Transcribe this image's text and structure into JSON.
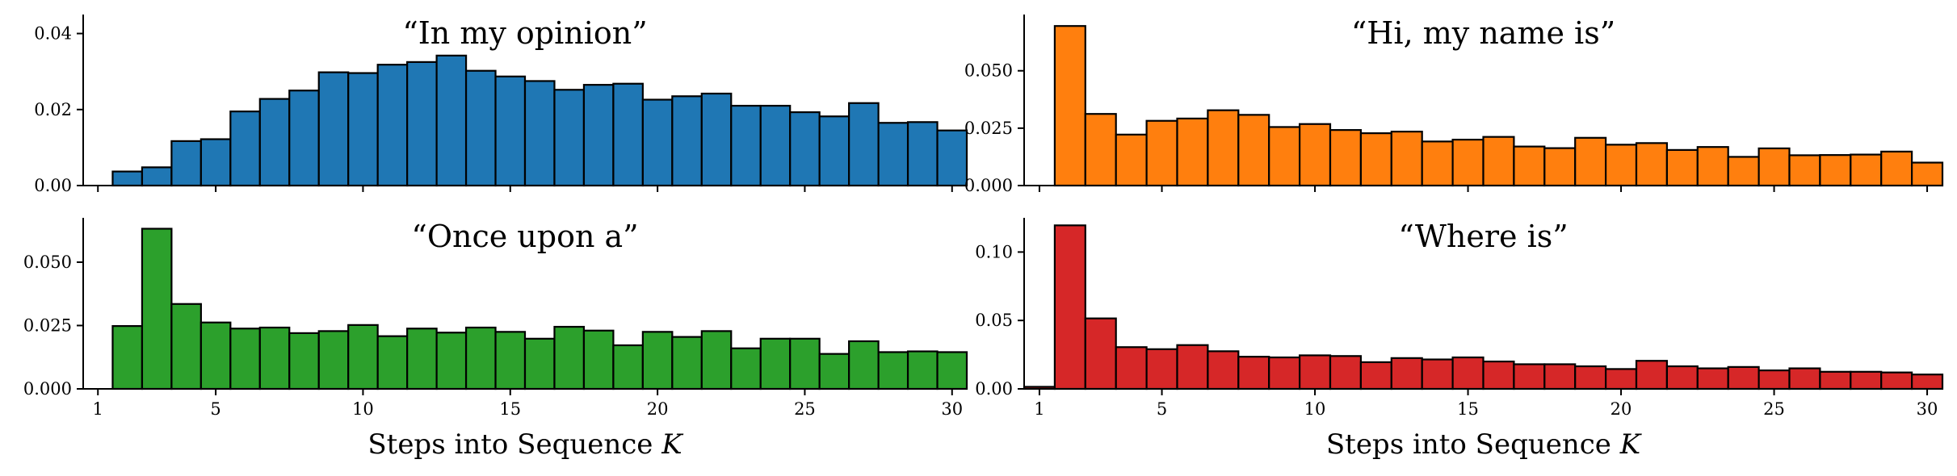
{
  "chart_data": [
    {
      "type": "bar",
      "title": "“In my opinion”",
      "color": "#1f77b4",
      "xlabel": "",
      "x": [
        1,
        2,
        3,
        4,
        5,
        6,
        7,
        8,
        9,
        10,
        11,
        12,
        13,
        14,
        15,
        16,
        17,
        18,
        19,
        20,
        21,
        22,
        23,
        24,
        25,
        26,
        27,
        28,
        29,
        30
      ],
      "values": [
        0.0,
        0.0037,
        0.0048,
        0.0117,
        0.0122,
        0.0195,
        0.0228,
        0.025,
        0.0298,
        0.0296,
        0.0318,
        0.0325,
        0.0342,
        0.0302,
        0.0287,
        0.0275,
        0.0252,
        0.0265,
        0.0268,
        0.0226,
        0.0235,
        0.0242,
        0.021,
        0.021,
        0.0193,
        0.0182,
        0.0217,
        0.0165,
        0.0167,
        0.0145
      ],
      "ylim": [
        0,
        0.045
      ],
      "yticks": [
        "0.00",
        "0.02",
        "0.04"
      ],
      "ytick_values": [
        0,
        0.02,
        0.04
      ],
      "xlim": [
        0.5,
        30.5
      ],
      "xticks": []
    },
    {
      "type": "bar",
      "title": "“Hi, my name is”",
      "color": "#ff7f0e",
      "xlabel": "",
      "x": [
        1,
        2,
        3,
        4,
        5,
        6,
        7,
        8,
        9,
        10,
        11,
        12,
        13,
        14,
        15,
        16,
        17,
        18,
        19,
        20,
        21,
        22,
        23,
        24,
        25,
        26,
        27,
        28,
        29,
        30
      ],
      "values": [
        0.0,
        0.0695,
        0.0312,
        0.0222,
        0.0282,
        0.0292,
        0.0328,
        0.0308,
        0.0255,
        0.0268,
        0.0242,
        0.0228,
        0.0235,
        0.0192,
        0.02,
        0.0212,
        0.017,
        0.0163,
        0.0208,
        0.0178,
        0.0185,
        0.0155,
        0.0168,
        0.0125,
        0.0162,
        0.0132,
        0.0133,
        0.0135,
        0.0148,
        0.01
      ],
      "ylim": [
        0,
        0.0745
      ],
      "yticks": [
        "0.000",
        "0.025",
        "0.050"
      ],
      "ytick_values": [
        0,
        0.025,
        0.05
      ],
      "xlim": [
        0.5,
        30.5
      ],
      "xticks": []
    },
    {
      "type": "bar",
      "title": "“Once upon a”",
      "color": "#2ca02c",
      "xlabel": "Steps into Sequence K",
      "x": [
        1,
        2,
        3,
        4,
        5,
        6,
        7,
        8,
        9,
        10,
        11,
        12,
        13,
        14,
        15,
        16,
        17,
        18,
        19,
        20,
        21,
        22,
        23,
        24,
        25,
        26,
        27,
        28,
        29,
        30
      ],
      "values": [
        0.0,
        0.0248,
        0.0632,
        0.0335,
        0.0262,
        0.0238,
        0.0242,
        0.022,
        0.0228,
        0.0252,
        0.0208,
        0.0238,
        0.0222,
        0.0242,
        0.0225,
        0.0198,
        0.0245,
        0.023,
        0.0172,
        0.0225,
        0.0205,
        0.0228,
        0.016,
        0.0198,
        0.0198,
        0.0138,
        0.0188,
        0.0145,
        0.0148,
        0.0145
      ],
      "ylim": [
        0,
        0.0675
      ],
      "yticks": [
        "0.000",
        "0.025",
        "0.050"
      ],
      "ytick_values": [
        0,
        0.025,
        0.05
      ],
      "xlim": [
        0.5,
        30.5
      ],
      "xticks": [
        "1",
        "5",
        "10",
        "15",
        "20",
        "25",
        "30"
      ],
      "xtick_values": [
        1,
        5,
        10,
        15,
        20,
        25,
        30
      ]
    },
    {
      "type": "bar",
      "title": "“Where is”",
      "color": "#d62728",
      "xlabel": "Steps into Sequence K",
      "x": [
        1,
        2,
        3,
        4,
        5,
        6,
        7,
        8,
        9,
        10,
        11,
        12,
        13,
        14,
        15,
        16,
        17,
        18,
        19,
        20,
        21,
        22,
        23,
        24,
        25,
        26,
        27,
        28,
        29,
        30
      ],
      "values": [
        0.0015,
        0.1195,
        0.0515,
        0.0305,
        0.029,
        0.032,
        0.0275,
        0.0235,
        0.023,
        0.0245,
        0.024,
        0.0195,
        0.0225,
        0.0215,
        0.023,
        0.02,
        0.018,
        0.018,
        0.0165,
        0.0145,
        0.0205,
        0.0165,
        0.015,
        0.016,
        0.0135,
        0.015,
        0.0125,
        0.0125,
        0.012,
        0.0105
      ],
      "ylim": [
        0,
        0.125
      ],
      "yticks": [
        "0.00",
        "0.05",
        "0.10"
      ],
      "ytick_values": [
        0,
        0.05,
        0.1
      ],
      "xlim": [
        0.5,
        30.5
      ],
      "xticks": [
        "1",
        "5",
        "10",
        "15",
        "20",
        "25",
        "30"
      ],
      "xtick_values": [
        1,
        5,
        10,
        15,
        20,
        25,
        30
      ]
    }
  ]
}
